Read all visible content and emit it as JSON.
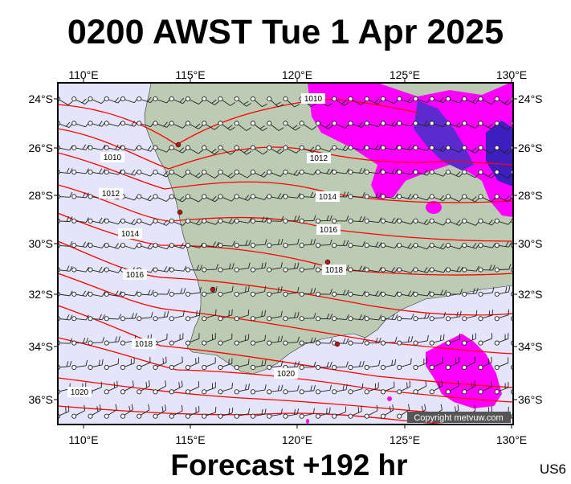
{
  "header": {
    "title": "0200 AWST Tue 1 Apr 2025"
  },
  "footer": {
    "forecast_label": "Forecast +192 hr",
    "region_code": "US6"
  },
  "copyright": "Copyright metvuw.com",
  "axes": {
    "lon_ticks": [
      "110°E",
      "115°E",
      "120°E",
      "125°E",
      "130°E"
    ],
    "lat_ticks": [
      "24°S",
      "26°S",
      "28°S",
      "30°S",
      "32°S",
      "34°S",
      "36°S"
    ]
  },
  "isobars": [
    {
      "label": "1010"
    },
    {
      "label": "1012"
    },
    {
      "label": "1014"
    },
    {
      "label": "1016"
    },
    {
      "label": "1018"
    },
    {
      "label": "1020"
    }
  ],
  "colors": {
    "sea": "#e4e4fa",
    "land": "#bcccb4",
    "isobar": "#ff0000",
    "rain_light": "#ff00ff",
    "rain_heavy": "#5b2bd0"
  }
}
